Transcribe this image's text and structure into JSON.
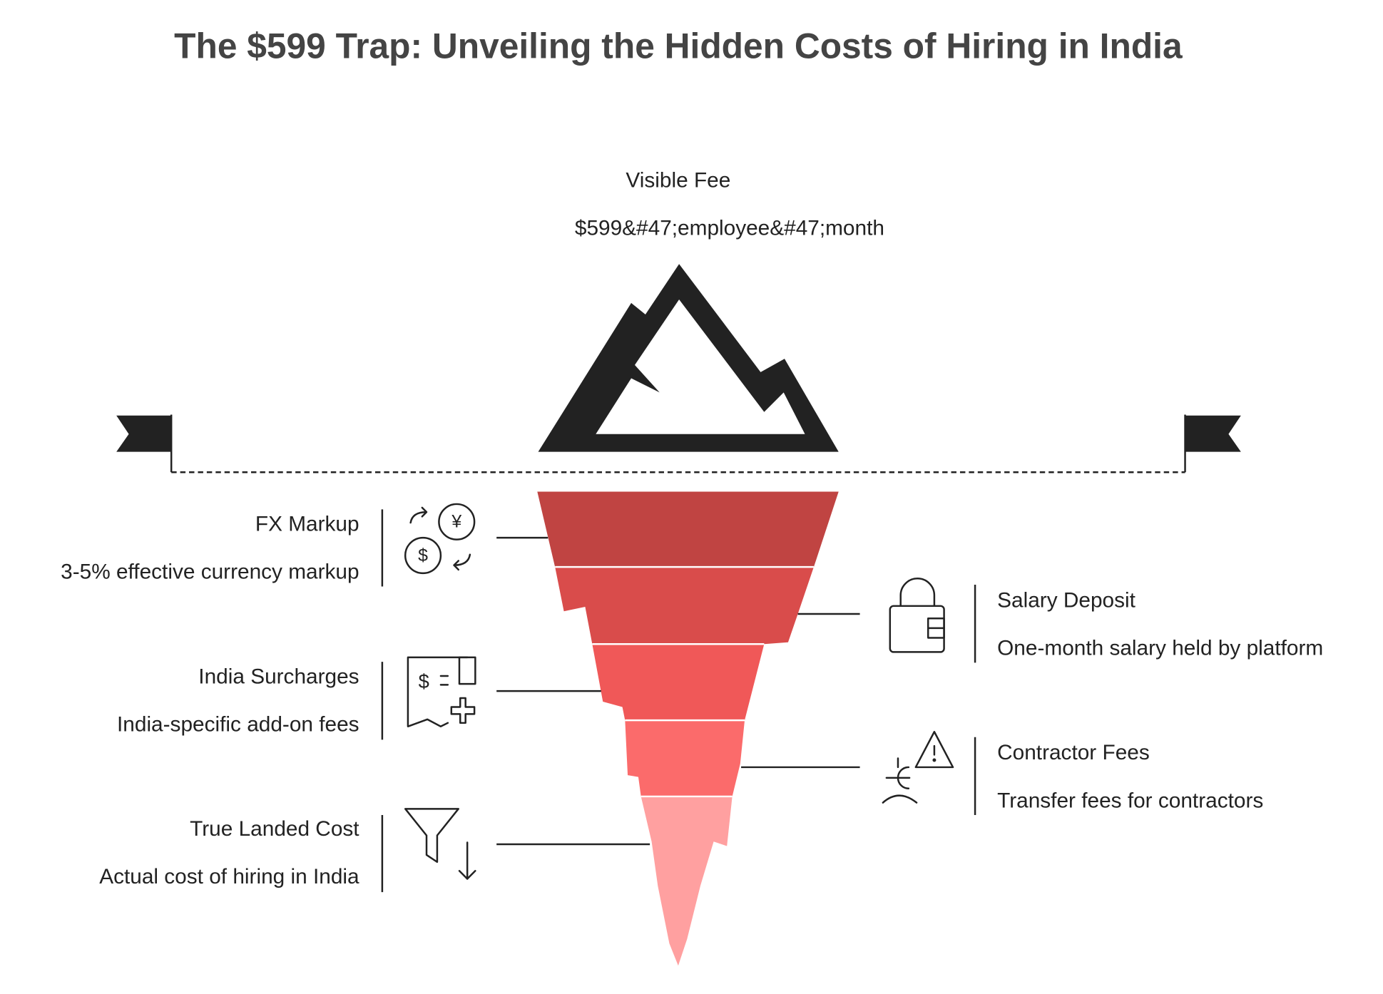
{
  "title": "The $599 Trap: Unveiling the Hidden Costs of Hiring in India",
  "visible": {
    "label": "Visible Fee",
    "description": "$599&#47;employee&#47;month"
  },
  "hidden": [
    {
      "label": "FX Markup",
      "description": "3-5% effective currency markup"
    },
    {
      "label": "Salary Deposit",
      "description": "One-month salary held by platform"
    },
    {
      "label": "India Surcharges",
      "description": "India-specific add-on fees"
    },
    {
      "label": "Contractor Fees",
      "description": "Transfer fees for contractors"
    },
    {
      "label": "True Landed Cost",
      "description": "Actual cost of hiring in India"
    }
  ]
}
